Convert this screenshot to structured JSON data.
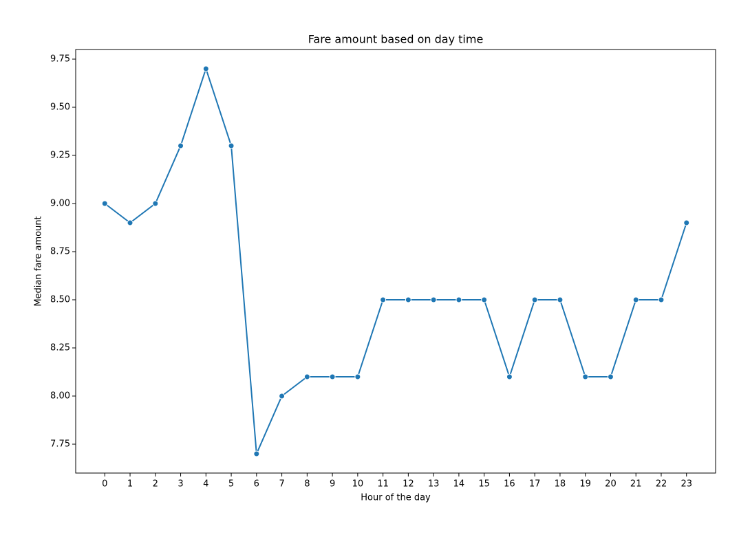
{
  "chart_data": {
    "type": "line",
    "title": "Fare amount based on day time",
    "x_label": "Hour of the day",
    "y_label": "Median fare amount",
    "x": [
      0,
      1,
      2,
      3,
      4,
      5,
      6,
      7,
      8,
      9,
      10,
      11,
      12,
      13,
      14,
      15,
      16,
      17,
      18,
      19,
      20,
      21,
      22,
      23
    ],
    "series": [
      {
        "color": "#1f77b4",
        "values": [
          9.0,
          8.9,
          9.0,
          9.3,
          9.7,
          9.3,
          7.7,
          8.0,
          8.1,
          8.1,
          8.1,
          8.5,
          8.5,
          8.5,
          8.5,
          8.5,
          8.1,
          8.5,
          8.5,
          8.1,
          8.1,
          8.5,
          8.5,
          8.9
        ]
      }
    ],
    "xlim": [
      -1.15,
      24.15
    ],
    "xticks": [
      0,
      1,
      2,
      3,
      4,
      5,
      6,
      7,
      8,
      9,
      10,
      11,
      12,
      13,
      14,
      15,
      16,
      17,
      18,
      19,
      20,
      21,
      22,
      23
    ],
    "ylim": [
      7.6,
      9.8
    ],
    "yticks": [
      7.75,
      {
        "value": 8,
        "label": "8.00"
      },
      8.25,
      {
        "value": 8.5,
        "label": "8.50"
      },
      8.75,
      {
        "value": 9,
        "label": "9.00"
      },
      9.25,
      {
        "value": 9.5,
        "label": "9.50"
      },
      9.75
    ],
    "grid": false,
    "markers": true
  }
}
